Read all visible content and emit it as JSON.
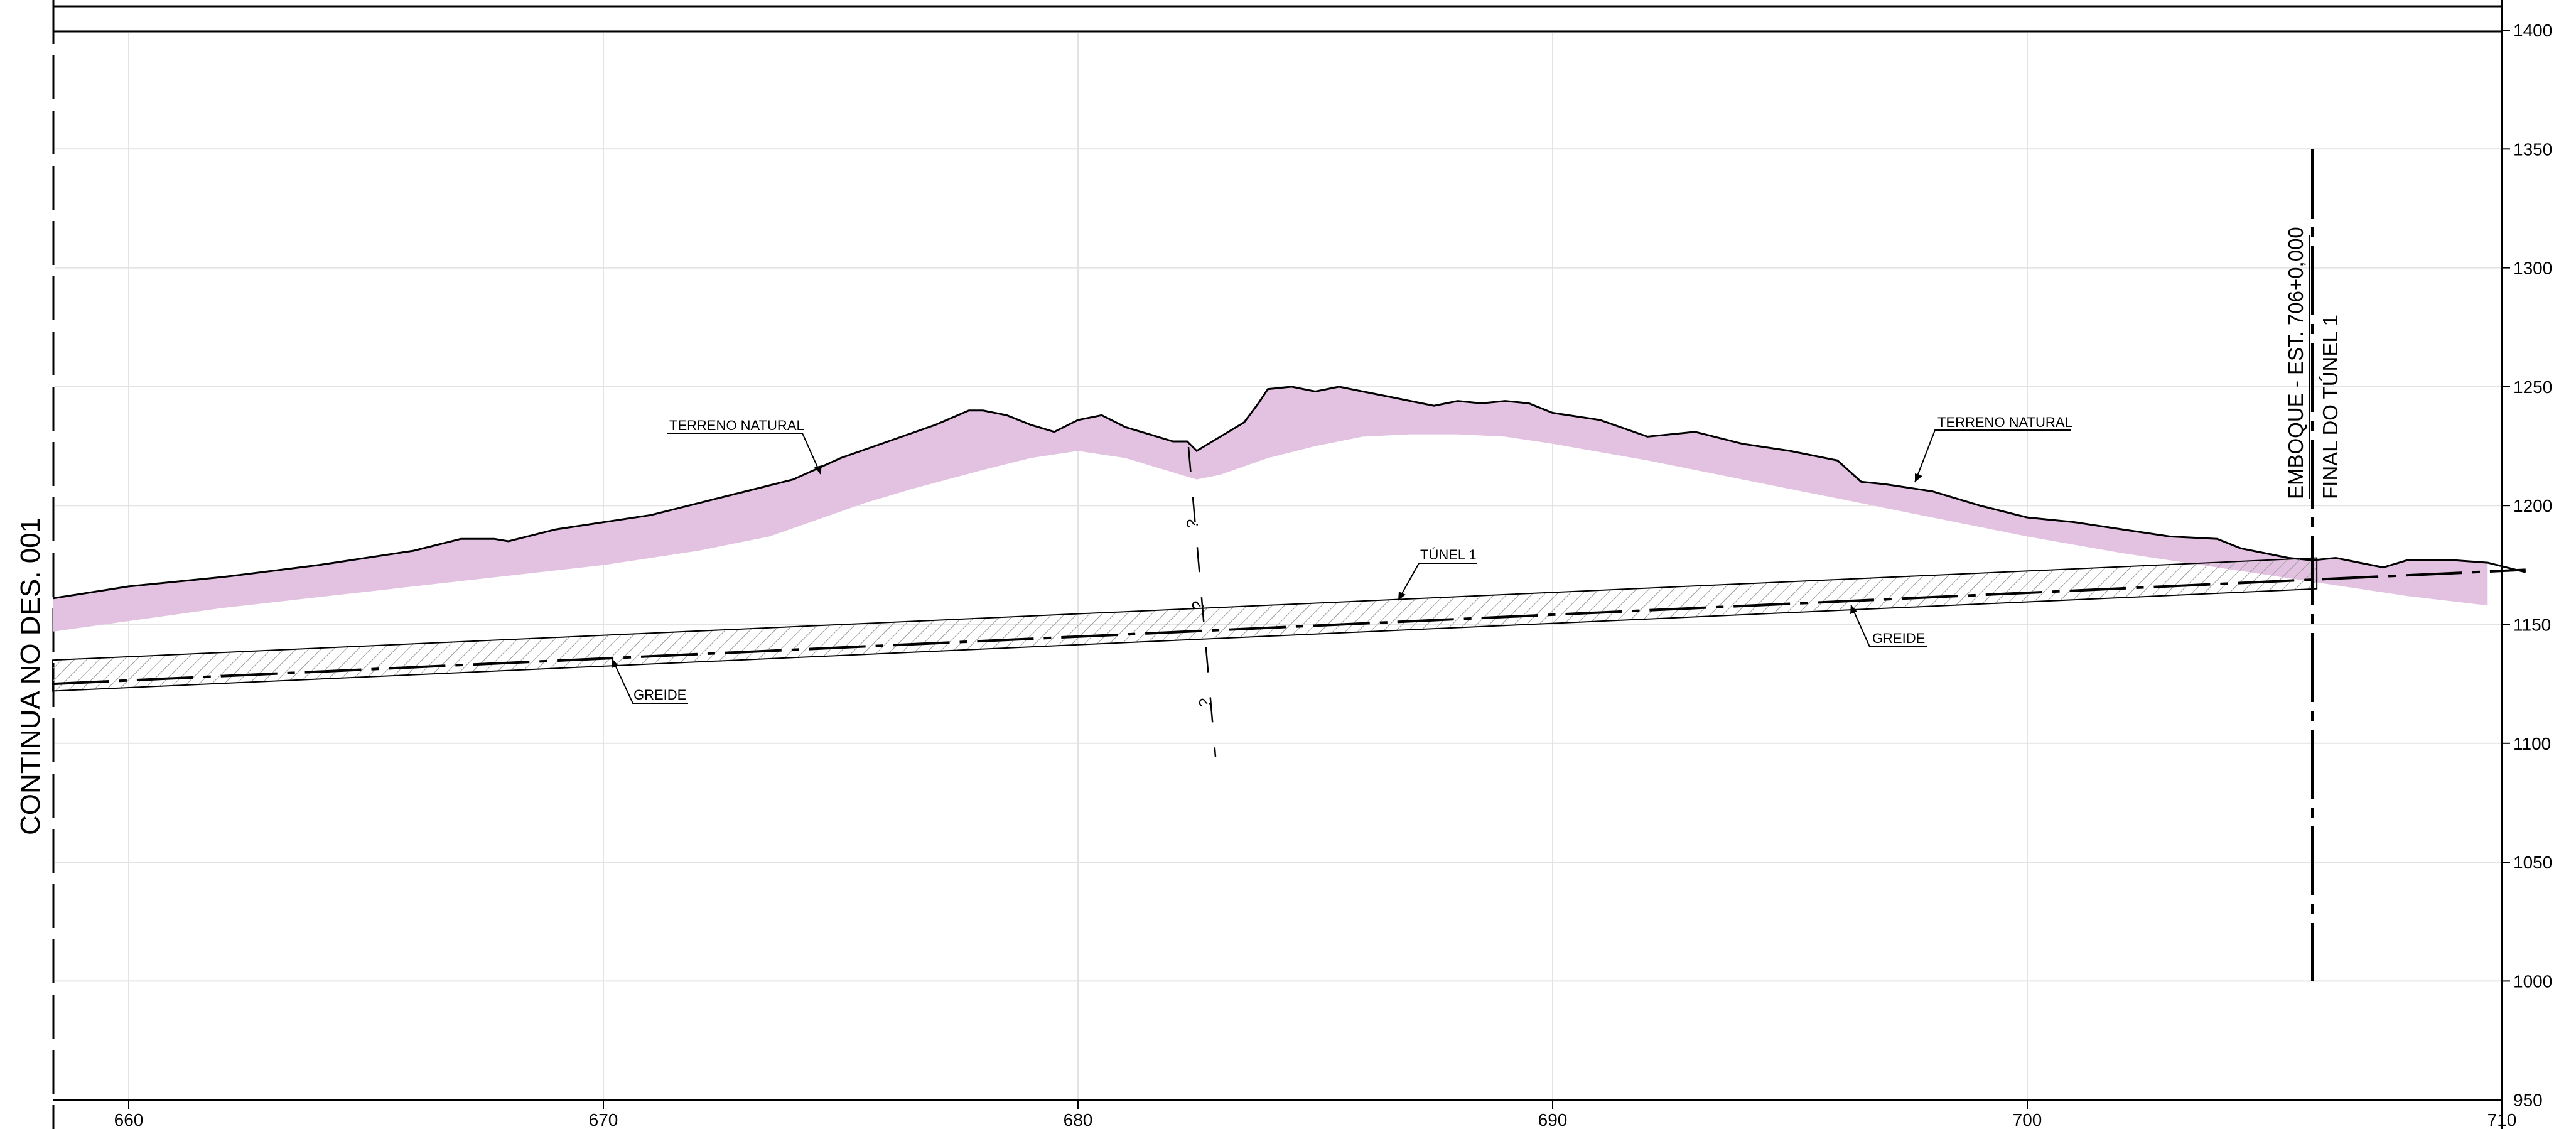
{
  "chart_data": {
    "type": "area",
    "title": "",
    "xlabel": "",
    "ylabel": "",
    "xlim": [
      658.4,
      710.5
    ],
    "ylim": [
      950,
      1400
    ],
    "x_ticks": [
      "660",
      "670",
      "680",
      "690",
      "700",
      "710"
    ],
    "y_ticks": [
      "1000",
      "1050",
      "1100",
      "1150",
      "1200",
      "1250",
      "1300",
      "1350",
      "1400"
    ],
    "grid": true,
    "series": [
      {
        "name": "TERRENO NATURAL",
        "x": [
          658.4,
          660,
          662,
          664,
          666,
          667,
          667.7,
          668,
          669,
          670,
          671,
          672,
          673,
          674,
          675,
          676,
          677,
          677.7,
          678,
          678.5,
          679,
          679.5,
          680,
          680.5,
          681,
          681.5,
          682,
          682.3,
          682.5,
          683,
          683.5,
          683.8,
          684,
          684.5,
          685,
          685.5,
          686,
          686.5,
          687,
          687.5,
          688,
          688.5,
          689,
          689.5,
          690,
          691,
          692,
          693,
          694,
          695,
          696,
          696.5,
          697,
          698,
          699,
          700,
          701,
          702,
          703,
          704,
          704.5,
          705,
          705.5,
          706,
          706.5,
          707,
          707.5,
          708,
          709,
          709.7,
          710.5
        ],
        "y": [
          1161,
          1166,
          1170,
          1175,
          1181,
          1186,
          1186,
          1185,
          1190,
          1193,
          1196,
          1201,
          1206,
          1211,
          1220,
          1227,
          1234,
          1240,
          1240,
          1238,
          1234,
          1231,
          1236,
          1238,
          1233,
          1230,
          1227,
          1227,
          1223,
          1229,
          1235,
          1243,
          1249,
          1250,
          1248,
          1250,
          1248,
          1246,
          1244,
          1242,
          1244,
          1243,
          1244,
          1243,
          1239,
          1236,
          1229,
          1231,
          1226,
          1223,
          1219,
          1210,
          1209,
          1206,
          1200,
          1195,
          1193,
          1190,
          1187,
          1186,
          1182,
          1180,
          1178,
          1177,
          1178,
          1176,
          1174,
          1177,
          1177,
          1176,
          1172
        ]
      },
      {
        "name": "TERRENO NATURAL (limite inferior)",
        "x": [
          658.4,
          662,
          666,
          670,
          672,
          673.5,
          674.5,
          675.5,
          676.5,
          678,
          679,
          680,
          681,
          682,
          682.5,
          683,
          684,
          685,
          686,
          687,
          688,
          689,
          690,
          692,
          694,
          696,
          698,
          700,
          702,
          704,
          706,
          708,
          709.7
        ],
        "y": [
          1147,
          1157,
          1166,
          1175,
          1181,
          1187,
          1194,
          1201,
          1207,
          1215,
          1220,
          1223,
          1220,
          1214,
          1211,
          1213,
          1220,
          1225,
          1229,
          1230,
          1230,
          1229,
          1226,
          1219,
          1211,
          1203,
          1195,
          1187,
          1180,
          1174,
          1168,
          1162,
          1158
        ]
      },
      {
        "name": "TÚNEL 1",
        "x": [
          658.4,
          706.1
        ],
        "y_top": [
          1135,
          1178
        ],
        "y_bottom": [
          1122,
          1165
        ]
      },
      {
        "name": "GREIDE",
        "x": [
          658.4,
          710.5
        ],
        "y": [
          1125,
          1173
        ]
      }
    ],
    "annotations": {
      "terreno_natural_left": "TERRENO NATURAL",
      "terreno_natural_right": "TERRENO NATURAL",
      "tunel": "TÚNEL 1",
      "greide_left": "GREIDE",
      "greide_right": "GREIDE",
      "emboque_line1": "EMBOQUE - EST. 706+0,000",
      "emboque_line2": "FINAL DO TÚNEL 1",
      "continua": "CONTINUA NO DES. 001",
      "question": "?"
    },
    "colors": {
      "terrain_fill": "#e2c2e0",
      "hatch": "#9a9a9a",
      "grid": "#e3e3e3",
      "line": "#000000"
    }
  }
}
